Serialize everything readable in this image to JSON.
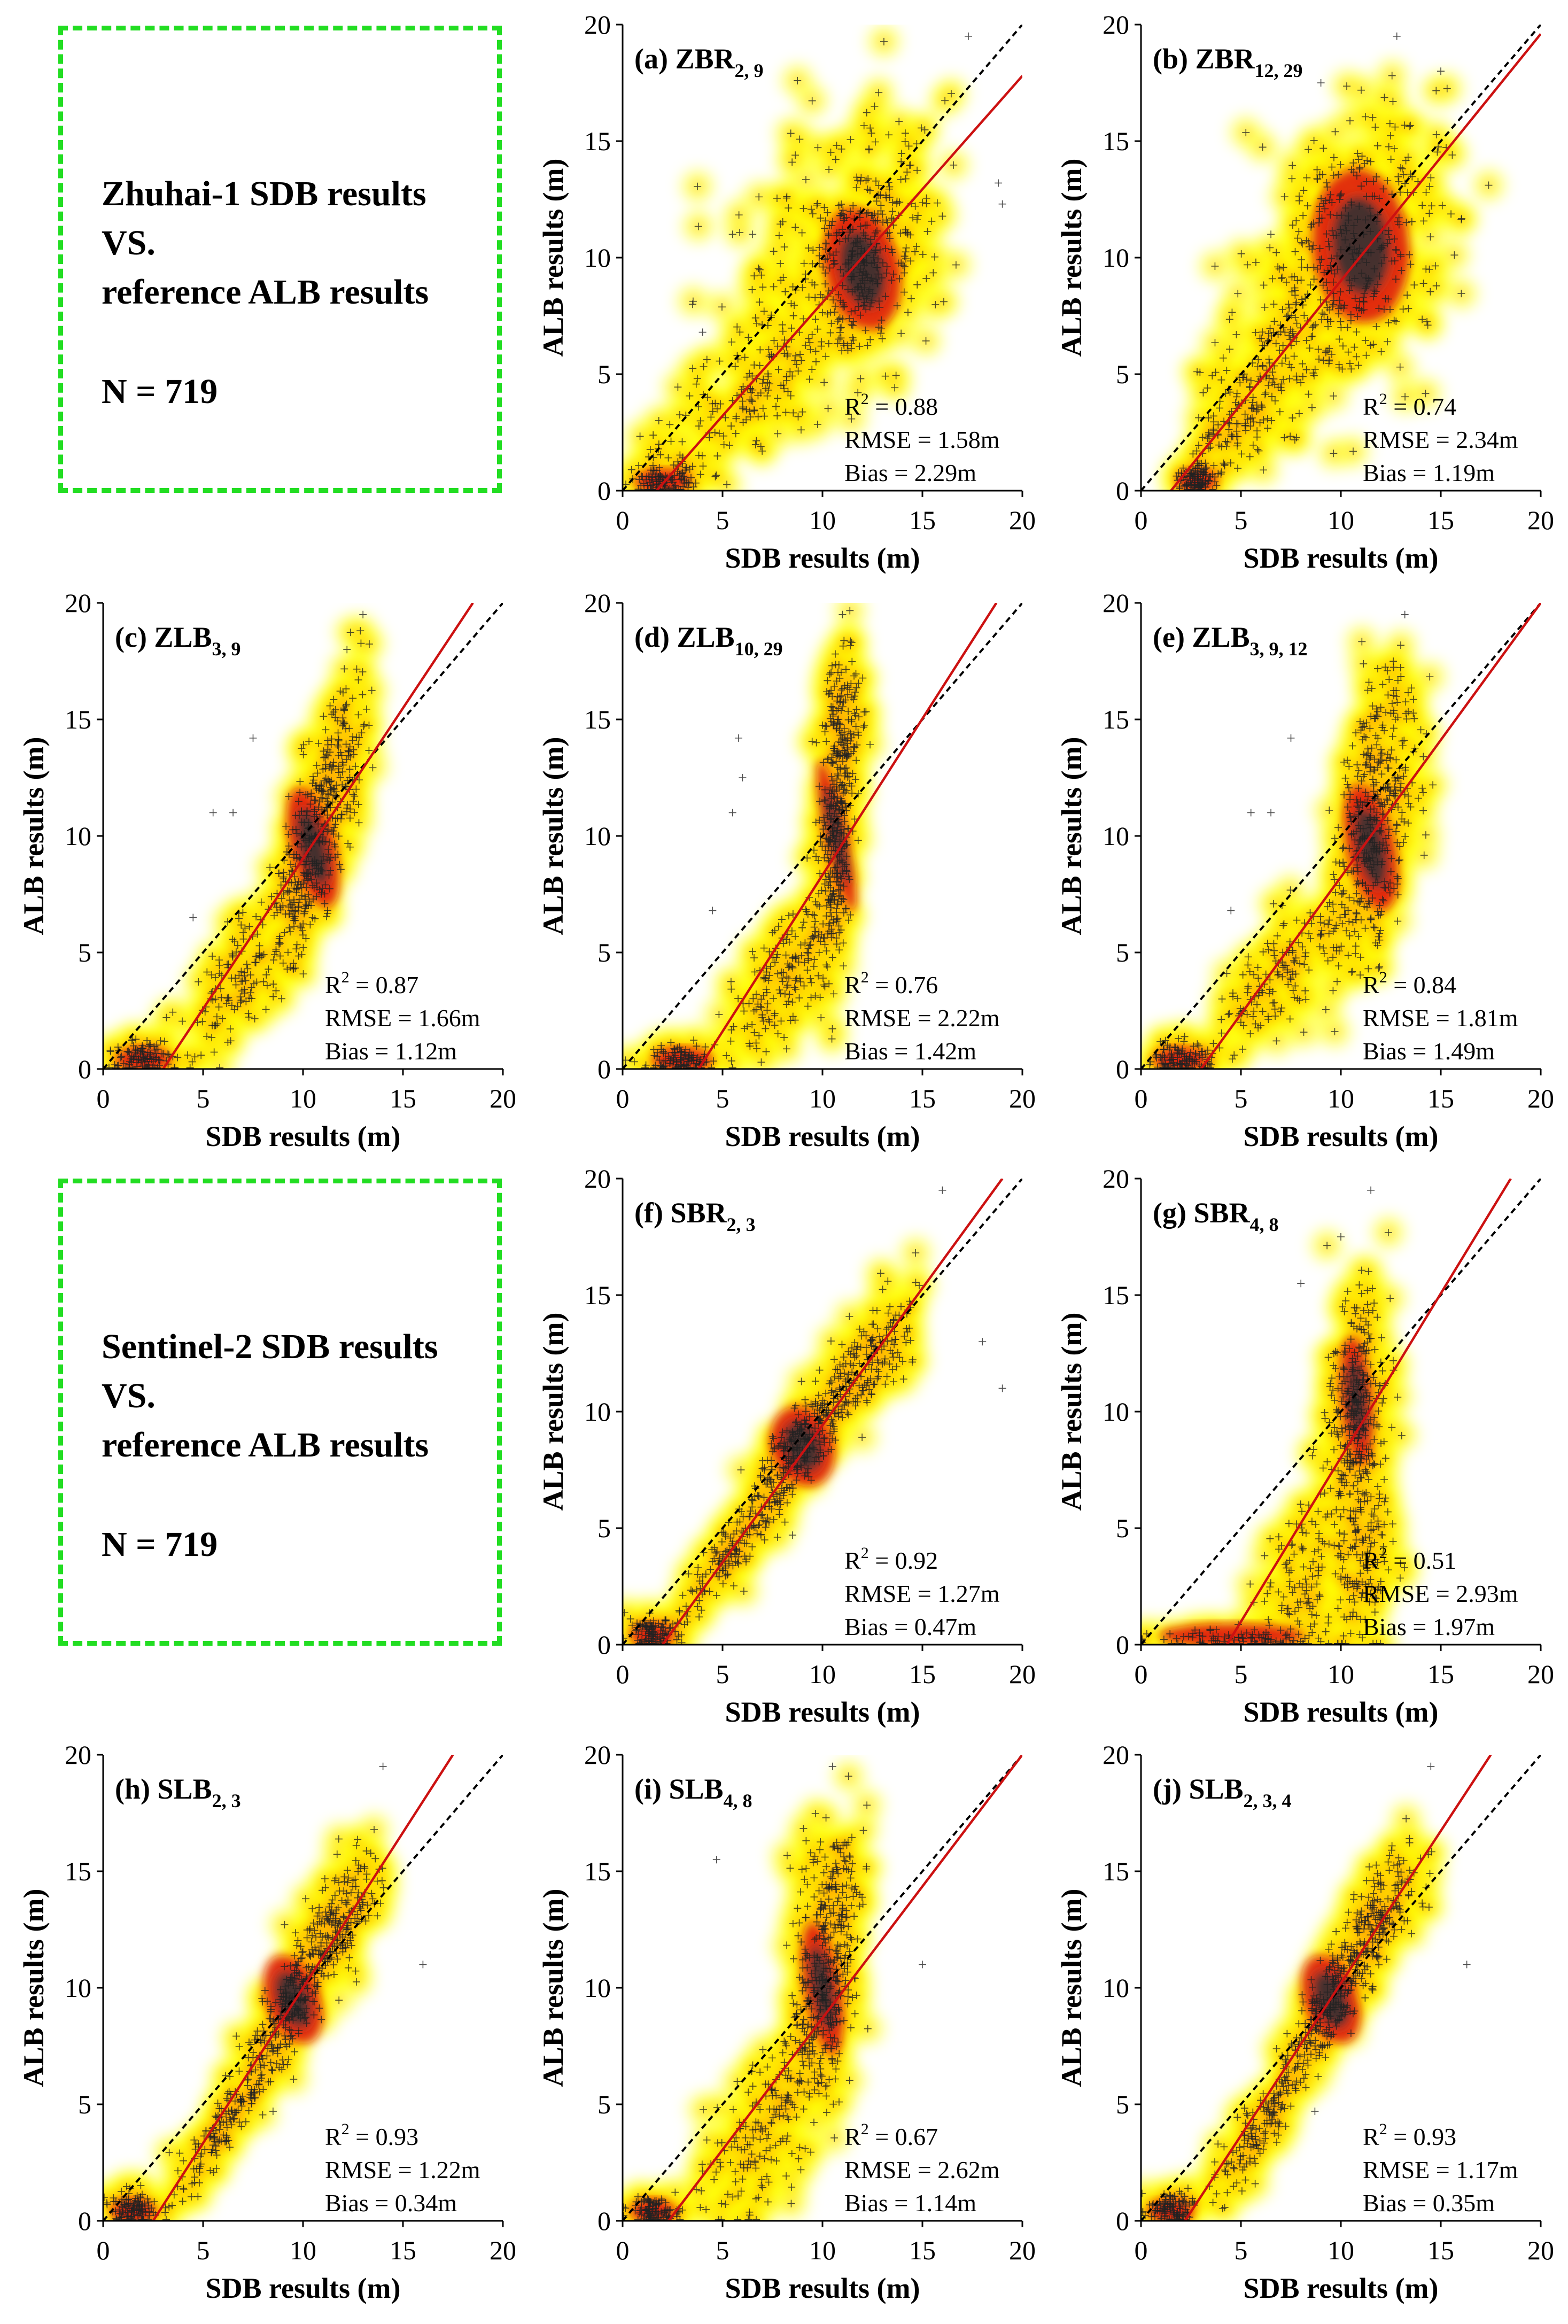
{
  "info_boxes": [
    {
      "line1": "Zhuhai-1 SDB results",
      "line2": "VS.",
      "line3": "reference ALB results",
      "n_label": "N = 719"
    },
    {
      "line1": "Sentinel-2 SDB results",
      "line2": "VS.",
      "line3": "reference ALB results",
      "n_label": "N = 719"
    }
  ],
  "colors": {
    "box_border": "#22dd22",
    "fit_line": "#cc1111",
    "identity_line": "#000000",
    "density_low": "#ffff00",
    "density_mid": "#ff9900",
    "density_high": "#dd1111",
    "density_core": "#333333"
  },
  "chart_data": [
    {
      "type": "scatter",
      "label": "(a)",
      "name": "ZBR",
      "sub": "2, 9",
      "xlabel": "SDB results (m)",
      "ylabel": "ALB results (m)",
      "xlim": [
        0,
        20
      ],
      "ylim": [
        0,
        20
      ],
      "xticks": [
        0,
        5,
        10,
        15,
        20
      ],
      "yticks": [
        0,
        5,
        10,
        15,
        20
      ],
      "stats": [
        "R2 = 0.88",
        "RMSE = 1.58m",
        "Bias = 2.29m"
      ],
      "fit": [
        [
          1.7,
          0
        ],
        [
          20,
          17.8
        ]
      ],
      "clusters": [
        {
          "x": 12,
          "y": 9.5,
          "sx": 1.7,
          "sy": 2.4,
          "rho": 0.5,
          "n": 320
        },
        {
          "x": 10,
          "y": 11,
          "sx": 2.5,
          "sy": 3.5,
          "rho": 0.5,
          "n": 140
        },
        {
          "x": 6,
          "y": 4,
          "sx": 2.2,
          "sy": 1.8,
          "rho": 0.7,
          "n": 140
        },
        {
          "x": 2,
          "y": 0.5,
          "sx": 0.8,
          "sy": 0.35,
          "rho": 0,
          "n": 110
        }
      ],
      "outliers": [
        [
          17.3,
          19.5
        ],
        [
          19,
          12.3
        ],
        [
          18.8,
          13.2
        ],
        [
          5.5,
          11
        ],
        [
          6.5,
          11
        ],
        [
          3.5,
          8
        ],
        [
          4,
          6.8
        ]
      ]
    },
    {
      "type": "scatter",
      "label": "(b)",
      "name": "ZBR",
      "sub": "12, 29",
      "xlabel": "SDB results (m)",
      "ylabel": "ALB results (m)",
      "xlim": [
        0,
        20
      ],
      "ylim": [
        0,
        20
      ],
      "xticks": [
        0,
        5,
        10,
        15,
        20
      ],
      "yticks": [
        0,
        5,
        10,
        15,
        20
      ],
      "stats": [
        "R2 = 0.74",
        "RMSE = 2.34m",
        "Bias = 1.19m"
      ],
      "fit": [
        [
          1.5,
          0
        ],
        [
          20,
          19.6
        ]
      ],
      "clusters": [
        {
          "x": 11,
          "y": 10.5,
          "sx": 2.2,
          "sy": 3.0,
          "rho": 0.2,
          "n": 340
        },
        {
          "x": 7,
          "y": 6,
          "sx": 1.8,
          "sy": 2.2,
          "rho": 0.5,
          "n": 180
        },
        {
          "x": 4.5,
          "y": 3,
          "sx": 1.0,
          "sy": 1.2,
          "rho": 0.5,
          "n": 80
        },
        {
          "x": 2.8,
          "y": 0.5,
          "sx": 0.5,
          "sy": 0.35,
          "rho": 0,
          "n": 110
        }
      ],
      "outliers": [
        [
          12.8,
          19.5
        ],
        [
          15,
          18
        ],
        [
          6.5,
          11
        ],
        [
          9,
          17.5
        ]
      ]
    },
    {
      "type": "scatter",
      "label": "(c)",
      "name": "ZLB",
      "sub": "3, 9",
      "xlabel": "SDB results (m)",
      "ylabel": "ALB results (m)",
      "xlim": [
        0,
        20
      ],
      "ylim": [
        0,
        20
      ],
      "xticks": [
        0,
        5,
        10,
        15,
        20
      ],
      "yticks": [
        0,
        5,
        10,
        15,
        20
      ],
      "stats": [
        "R2 = 0.87",
        "RMSE = 1.66m",
        "Bias = 1.12m"
      ],
      "fit": [
        [
          3,
          0
        ],
        [
          18.5,
          20
        ]
      ],
      "clusters": [
        {
          "x": 10.5,
          "y": 9.5,
          "sx": 1.0,
          "sy": 2.4,
          "rho": 0.6,
          "n": 330
        },
        {
          "x": 7,
          "y": 4,
          "sx": 1.5,
          "sy": 1.6,
          "rho": 0.7,
          "n": 150
        },
        {
          "x": 12,
          "y": 14,
          "sx": 0.7,
          "sy": 2.0,
          "rho": 0.3,
          "n": 100
        },
        {
          "x": 2,
          "y": 0.5,
          "sx": 0.8,
          "sy": 0.35,
          "rho": 0,
          "n": 110
        }
      ],
      "outliers": [
        [
          13,
          19.5
        ],
        [
          5.5,
          11
        ],
        [
          6.5,
          11
        ],
        [
          7.5,
          14.2
        ],
        [
          4.5,
          6.5
        ],
        [
          12.2,
          18
        ]
      ]
    },
    {
      "type": "scatter",
      "label": "(d)",
      "name": "ZLB",
      "sub": "10, 29",
      "xlabel": "SDB results (m)",
      "ylabel": "ALB results (m)",
      "xlim": [
        0,
        20
      ],
      "ylim": [
        0,
        20
      ],
      "xticks": [
        0,
        5,
        10,
        15,
        20
      ],
      "yticks": [
        0,
        5,
        10,
        15,
        20
      ],
      "stats": [
        "R2 = 0.76",
        "RMSE = 2.22m",
        "Bias = 1.42m"
      ],
      "fit": [
        [
          3.8,
          0
        ],
        [
          18.7,
          20
        ]
      ],
      "clusters": [
        {
          "x": 10.7,
          "y": 10,
          "sx": 0.5,
          "sy": 3.0,
          "rho": 0.5,
          "n": 340
        },
        {
          "x": 8,
          "y": 4,
          "sx": 1.3,
          "sy": 1.8,
          "rho": 0.7,
          "n": 160
        },
        {
          "x": 11,
          "y": 15,
          "sx": 0.5,
          "sy": 1.6,
          "rho": 0.2,
          "n": 90
        },
        {
          "x": 3,
          "y": 0.4,
          "sx": 0.9,
          "sy": 0.3,
          "rho": 0,
          "n": 110
        }
      ],
      "outliers": [
        [
          11,
          19.5
        ],
        [
          5.5,
          11
        ],
        [
          6,
          12.5
        ],
        [
          5.8,
          14.2
        ],
        [
          4.5,
          6.8
        ]
      ]
    },
    {
      "type": "scatter",
      "label": "(e)",
      "name": "ZLB",
      "sub": "3, 9, 12",
      "xlabel": "SDB results (m)",
      "ylabel": "ALB results (m)",
      "xlim": [
        0,
        20
      ],
      "ylim": [
        0,
        20
      ],
      "xticks": [
        0,
        5,
        10,
        15,
        20
      ],
      "yticks": [
        0,
        5,
        10,
        15,
        20
      ],
      "stats": [
        "R2 = 0.84",
        "RMSE = 1.81m",
        "Bias = 1.49m"
      ],
      "fit": [
        [
          3,
          0
        ],
        [
          20,
          20
        ]
      ],
      "clusters": [
        {
          "x": 11.5,
          "y": 9.5,
          "sx": 1.1,
          "sy": 2.5,
          "rho": 0.5,
          "n": 330
        },
        {
          "x": 7,
          "y": 4,
          "sx": 1.6,
          "sy": 1.7,
          "rho": 0.7,
          "n": 150
        },
        {
          "x": 12,
          "y": 14.5,
          "sx": 0.8,
          "sy": 1.8,
          "rho": 0.3,
          "n": 100
        },
        {
          "x": 2,
          "y": 0.4,
          "sx": 0.8,
          "sy": 0.35,
          "rho": 0,
          "n": 110
        }
      ],
      "outliers": [
        [
          13.2,
          19.5
        ],
        [
          5.5,
          11
        ],
        [
          6.5,
          11
        ],
        [
          7.5,
          14.2
        ],
        [
          4.5,
          6.8
        ]
      ]
    },
    {
      "type": "scatter",
      "label": "(f)",
      "name": "SBR",
      "sub": "2, 3",
      "xlabel": "SDB results (m)",
      "ylabel": "ALB results (m)",
      "xlim": [
        0,
        20
      ],
      "ylim": [
        0,
        20
      ],
      "xticks": [
        0,
        5,
        10,
        15,
        20
      ],
      "yticks": [
        0,
        5,
        10,
        15,
        20
      ],
      "stats": [
        "R2 = 0.92",
        "RMSE = 1.27m",
        "Bias = 0.47m"
      ],
      "fit": [
        [
          2,
          0
        ],
        [
          19,
          20
        ]
      ],
      "clusters": [
        {
          "x": 9,
          "y": 8.5,
          "sx": 1.4,
          "sy": 1.6,
          "rho": 0.85,
          "n": 280
        },
        {
          "x": 5.5,
          "y": 4,
          "sx": 1.5,
          "sy": 1.6,
          "rho": 0.9,
          "n": 150
        },
        {
          "x": 12.5,
          "y": 12.5,
          "sx": 1.3,
          "sy": 1.4,
          "rho": 0.6,
          "n": 160
        },
        {
          "x": 1.5,
          "y": 0.5,
          "sx": 0.6,
          "sy": 0.35,
          "rho": 0,
          "n": 110
        }
      ],
      "outliers": [
        [
          16,
          19.5
        ],
        [
          18,
          13
        ],
        [
          19,
          11
        ],
        [
          8.5,
          4.7
        ]
      ]
    },
    {
      "type": "scatter",
      "label": "(g)",
      "name": "SBR",
      "sub": "4, 8",
      "xlabel": "SDB results (m)",
      "ylabel": "ALB results (m)",
      "xlim": [
        0,
        20
      ],
      "ylim": [
        0,
        20
      ],
      "xticks": [
        0,
        5,
        10,
        15,
        20
      ],
      "yticks": [
        0,
        5,
        10,
        15,
        20
      ],
      "stats": [
        "R2 = 0.51",
        "RMSE = 2.93m",
        "Bias = 1.97m"
      ],
      "fit": [
        [
          4.3,
          0
        ],
        [
          18.5,
          20
        ]
      ],
      "clusters": [
        {
          "x": 10.8,
          "y": 10.5,
          "sx": 0.7,
          "sy": 2.5,
          "rho": 0.2,
          "n": 300
        },
        {
          "x": 11,
          "y": 4.5,
          "sx": 0.8,
          "sy": 2.5,
          "rho": 0,
          "n": 160
        },
        {
          "x": 8,
          "y": 2.5,
          "sx": 1.0,
          "sy": 2.0,
          "rho": 0.3,
          "n": 120
        },
        {
          "x": 4.5,
          "y": 0.2,
          "sx": 2.5,
          "sy": 0.25,
          "rho": 0,
          "n": 90
        }
      ],
      "outliers": [
        [
          11.5,
          19.5
        ],
        [
          10,
          17.5
        ],
        [
          8,
          15.5
        ]
      ]
    },
    {
      "type": "scatter",
      "label": "(h)",
      "name": "SLB",
      "sub": "2, 3",
      "xlabel": "SDB results (m)",
      "ylabel": "ALB results (m)",
      "xlim": [
        0,
        20
      ],
      "ylim": [
        0,
        20
      ],
      "xticks": [
        0,
        5,
        10,
        15,
        20
      ],
      "yticks": [
        0,
        5,
        10,
        15,
        20
      ],
      "stats": [
        "R2 = 0.93",
        "RMSE = 1.22m",
        "Bias = 0.34m"
      ],
      "fit": [
        [
          2.5,
          0
        ],
        [
          17.5,
          20
        ]
      ],
      "clusters": [
        {
          "x": 9.5,
          "y": 9.5,
          "sx": 1.2,
          "sy": 1.8,
          "rho": 0.85,
          "n": 280
        },
        {
          "x": 6,
          "y": 4,
          "sx": 1.3,
          "sy": 1.6,
          "rho": 0.9,
          "n": 150
        },
        {
          "x": 12,
          "y": 13,
          "sx": 1.0,
          "sy": 1.5,
          "rho": 0.6,
          "n": 160
        },
        {
          "x": 1.5,
          "y": 0.5,
          "sx": 0.6,
          "sy": 0.35,
          "rho": 0,
          "n": 110
        }
      ],
      "outliers": [
        [
          14,
          19.5
        ],
        [
          16,
          11
        ],
        [
          8.5,
          4.7
        ]
      ]
    },
    {
      "type": "scatter",
      "label": "(i)",
      "name": "SLB",
      "sub": "4, 8",
      "xlabel": "SDB results (m)",
      "ylabel": "ALB results (m)",
      "xlim": [
        0,
        20
      ],
      "ylim": [
        0,
        20
      ],
      "xticks": [
        0,
        5,
        10,
        15,
        20
      ],
      "yticks": [
        0,
        5,
        10,
        15,
        20
      ],
      "stats": [
        "R2 = 0.67",
        "RMSE = 2.62m",
        "Bias = 1.14m"
      ],
      "fit": [
        [
          2.3,
          0
        ],
        [
          20,
          20
        ]
      ],
      "clusters": [
        {
          "x": 10,
          "y": 10,
          "sx": 0.8,
          "sy": 2.6,
          "rho": 0.4,
          "n": 320
        },
        {
          "x": 7,
          "y": 4,
          "sx": 1.5,
          "sy": 2.0,
          "rho": 0.6,
          "n": 170
        },
        {
          "x": 10.5,
          "y": 14.5,
          "sx": 0.8,
          "sy": 1.5,
          "rho": 0.2,
          "n": 100
        },
        {
          "x": 1.5,
          "y": 0.4,
          "sx": 0.6,
          "sy": 0.35,
          "rho": 0,
          "n": 110
        }
      ],
      "outliers": [
        [
          10.5,
          19.5
        ],
        [
          15,
          11
        ],
        [
          4.7,
          15.5
        ]
      ]
    },
    {
      "type": "scatter",
      "label": "(j)",
      "name": "SLB",
      "sub": "2, 3, 4",
      "xlabel": "SDB results (m)",
      "ylabel": "ALB results (m)",
      "xlim": [
        0,
        20
      ],
      "ylim": [
        0,
        20
      ],
      "xticks": [
        0,
        5,
        10,
        15,
        20
      ],
      "yticks": [
        0,
        5,
        10,
        15,
        20
      ],
      "stats": [
        "R2 = 0.93",
        "RMSE = 1.17m",
        "Bias = 0.35m"
      ],
      "fit": [
        [
          2.2,
          0
        ],
        [
          17.5,
          20
        ]
      ],
      "clusters": [
        {
          "x": 9.5,
          "y": 9.5,
          "sx": 1.2,
          "sy": 1.8,
          "rho": 0.85,
          "n": 280
        },
        {
          "x": 6,
          "y": 4,
          "sx": 1.3,
          "sy": 1.6,
          "rho": 0.9,
          "n": 150
        },
        {
          "x": 12,
          "y": 13,
          "sx": 1.0,
          "sy": 1.5,
          "rho": 0.6,
          "n": 160
        },
        {
          "x": 1.5,
          "y": 0.5,
          "sx": 0.6,
          "sy": 0.35,
          "rho": 0,
          "n": 110
        }
      ],
      "outliers": [
        [
          14.5,
          19.5
        ],
        [
          16.3,
          11
        ],
        [
          8.7,
          4.7
        ]
      ]
    }
  ]
}
